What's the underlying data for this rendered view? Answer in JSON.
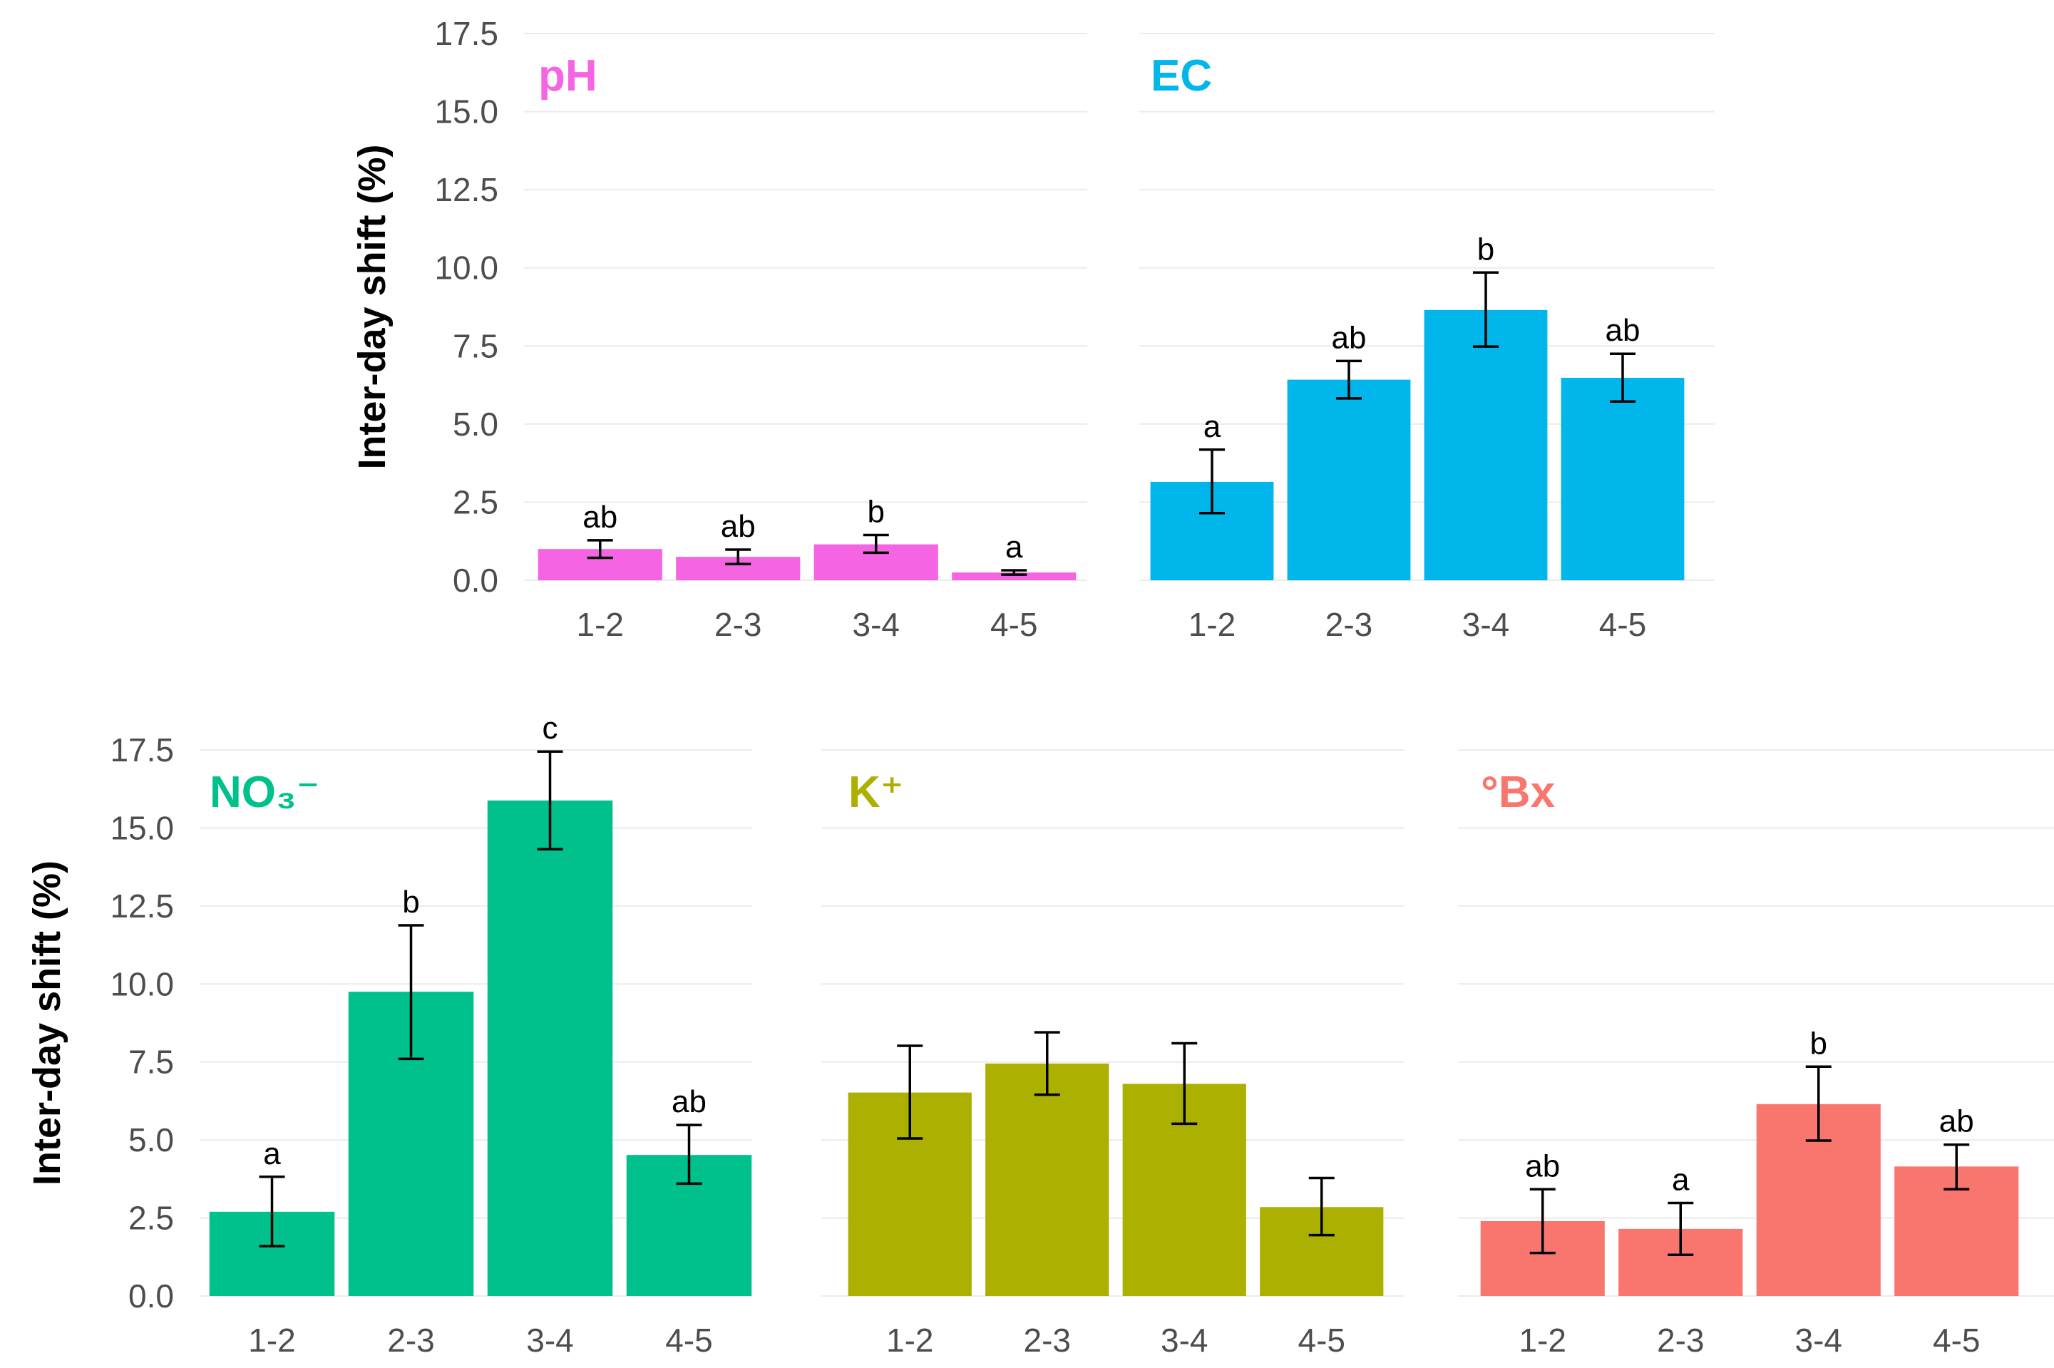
{
  "chart_data": [
    {
      "type": "bar",
      "title": "pH",
      "color": "#F564E3",
      "ylabel": "Inter-day shift (%)",
      "ylim": [
        0,
        17.5
      ],
      "yticks": [
        "0.0",
        "2.5",
        "5.0",
        "7.5",
        "10.0",
        "12.5",
        "15.0",
        "17.5"
      ],
      "categories": [
        "1-2",
        "2-3",
        "3-4",
        "4-5"
      ],
      "values": [
        1.0,
        0.75,
        1.15,
        0.25
      ],
      "error_low": [
        0.72,
        0.52,
        0.88,
        0.18
      ],
      "error_high": [
        1.28,
        0.98,
        1.45,
        0.32
      ],
      "labels": [
        "ab",
        "ab",
        "b",
        "a"
      ]
    },
    {
      "type": "bar",
      "title": "EC",
      "color": "#00B6EB",
      "ylabel": "",
      "ylim": [
        0,
        17.5
      ],
      "categories": [
        "1-2",
        "2-3",
        "3-4",
        "4-5"
      ],
      "values": [
        3.15,
        6.42,
        8.65,
        6.48
      ],
      "error_low": [
        2.15,
        5.82,
        7.48,
        5.72
      ],
      "error_high": [
        4.18,
        7.02,
        9.85,
        7.25
      ],
      "labels": [
        "a",
        "ab",
        "b",
        "ab"
      ]
    },
    {
      "type": "bar",
      "title": "NO₃⁻",
      "color": "#00C08B",
      "ylabel": "Inter-day shift (%)",
      "ylim": [
        0,
        17.5
      ],
      "yticks": [
        "0.0",
        "2.5",
        "5.0",
        "7.5",
        "10.0",
        "12.5",
        "15.0",
        "17.5"
      ],
      "categories": [
        "1-2",
        "2-3",
        "3-4",
        "4-5"
      ],
      "values": [
        2.7,
        9.75,
        15.88,
        4.52
      ],
      "error_low": [
        1.6,
        7.6,
        14.32,
        3.6
      ],
      "error_high": [
        3.82,
        11.88,
        17.45,
        5.48
      ],
      "labels": [
        "a",
        "b",
        "c",
        "ab"
      ]
    },
    {
      "type": "bar",
      "title": "K⁺",
      "color": "#ACB000",
      "ylabel": "",
      "ylim": [
        0,
        17.5
      ],
      "categories": [
        "1-2",
        "2-3",
        "3-4",
        "4-5"
      ],
      "values": [
        6.52,
        7.45,
        6.8,
        2.85
      ],
      "error_low": [
        5.05,
        6.45,
        5.52,
        1.95
      ],
      "error_high": [
        8.02,
        8.45,
        8.1,
        3.78
      ],
      "labels": [
        "",
        "",
        "",
        ""
      ]
    },
    {
      "type": "bar",
      "title": "°Bx",
      "color": "#F8766D",
      "ylabel": "",
      "ylim": [
        0,
        17.5
      ],
      "categories": [
        "1-2",
        "2-3",
        "3-4",
        "4-5"
      ],
      "values": [
        2.4,
        2.15,
        6.15,
        4.15
      ],
      "error_low": [
        1.38,
        1.32,
        4.98,
        3.42
      ],
      "error_high": [
        3.42,
        2.98,
        7.35,
        4.85
      ],
      "labels": [
        "ab",
        "a",
        "b",
        "ab"
      ]
    }
  ]
}
